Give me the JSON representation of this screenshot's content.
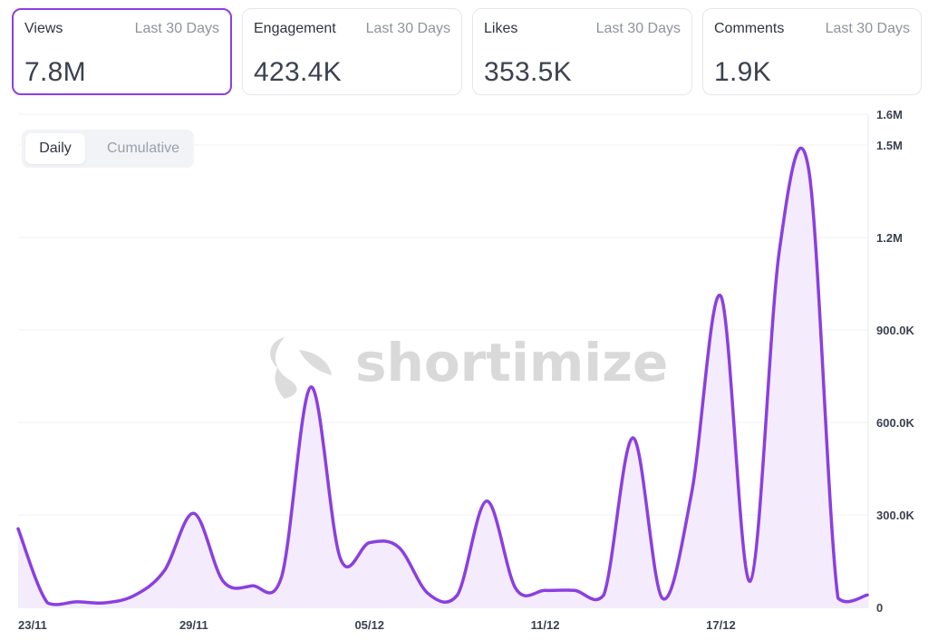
{
  "cards": [
    {
      "label": "Views",
      "range": "Last 30 Days",
      "value": "7.8M"
    },
    {
      "label": "Engagement",
      "range": "Last 30 Days",
      "value": "423.4K"
    },
    {
      "label": "Likes",
      "range": "Last 30 Days",
      "value": "353.5K"
    },
    {
      "label": "Comments",
      "range": "Last 30 Days",
      "value": "1.9K"
    }
  ],
  "toggle": {
    "daily": "Daily",
    "cumulative": "Cumulative"
  },
  "watermark": "shortimize",
  "colors": {
    "accent": "#8b3fe0",
    "area": "#f4ecfc"
  },
  "chart_data": {
    "type": "area",
    "title": "",
    "xlabel": "",
    "ylabel": "",
    "x": [
      "23/11",
      "24/11",
      "25/11",
      "26/11",
      "27/11",
      "28/11",
      "29/11",
      "30/11",
      "01/12",
      "02/12",
      "03/12",
      "04/12",
      "05/12",
      "06/12",
      "07/12",
      "08/12",
      "09/12",
      "10/12",
      "11/12",
      "12/12",
      "13/12",
      "14/12",
      "15/12",
      "16/12",
      "17/12",
      "18/12",
      "19/12",
      "20/12",
      "21/12",
      "22/12"
    ],
    "series": [
      {
        "values": [
          255000,
          15000,
          18000,
          15000,
          40000,
          120000,
          305000,
          85000,
          70000,
          100000,
          715000,
          160000,
          210000,
          195000,
          45000,
          40000,
          345000,
          60000,
          55000,
          55000,
          40000,
          550000,
          30000,
          370000,
          1010000,
          85000,
          1160000,
          1420000,
          30000,
          40000
        ]
      }
    ],
    "ylim": [
      0,
      1600000
    ],
    "yticks": [
      {
        "value": 0,
        "label": "0"
      },
      {
        "value": 300000,
        "label": "300.0K"
      },
      {
        "value": 600000,
        "label": "600.0K"
      },
      {
        "value": 900000,
        "label": "900.0K"
      },
      {
        "value": 1200000,
        "label": "1.2M"
      },
      {
        "value": 1500000,
        "label": "1.5M"
      },
      {
        "value": 1600000,
        "label": "1.6M"
      }
    ],
    "xticks": [
      "23/11",
      "29/11",
      "05/12",
      "11/12",
      "17/12"
    ],
    "grid": true
  }
}
